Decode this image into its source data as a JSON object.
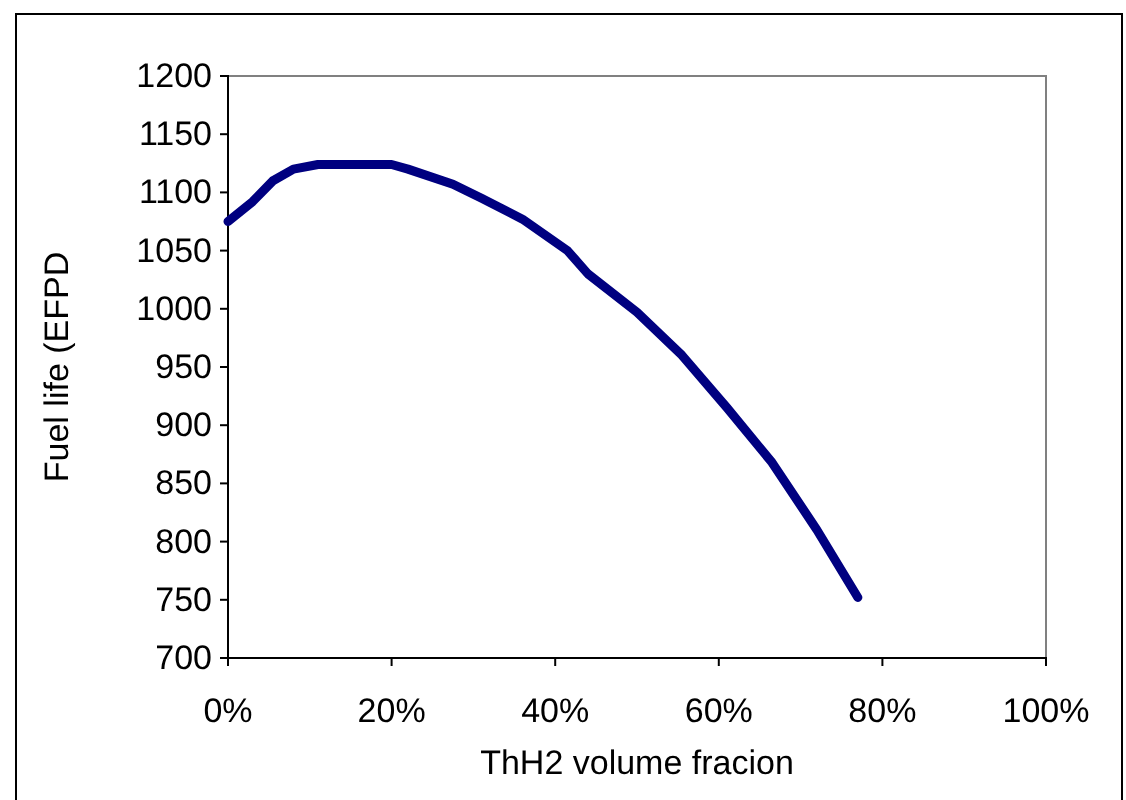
{
  "chart_data": {
    "type": "line",
    "xlabel": "ThH2 volume fracion",
    "ylabel": "Fuel life (EFPD",
    "x": [
      0,
      3,
      5.5,
      8,
      11,
      15,
      20,
      22,
      27.5,
      31,
      36,
      41.5,
      44,
      50,
      55.5,
      61,
      66.5,
      72,
      77
    ],
    "series": [
      {
        "color": "#000080",
        "values": [
          1075,
          1092,
          1110,
          1120,
          1124,
          1124,
          1124,
          1120,
          1107,
          1095,
          1077,
          1050,
          1030,
          997,
          960,
          915,
          868,
          810,
          752
        ]
      }
    ],
    "xlim": [
      0,
      100
    ],
    "xticks": [
      {
        "value": 0,
        "label": "0%"
      },
      {
        "value": 20,
        "label": "20%"
      },
      {
        "value": 40,
        "label": "40%"
      },
      {
        "value": 60,
        "label": "60%"
      },
      {
        "value": 80,
        "label": "80%"
      },
      {
        "value": 100,
        "label": "100%"
      }
    ],
    "ylim": [
      700,
      1200
    ],
    "yticks": [
      700,
      750,
      800,
      850,
      900,
      950,
      1000,
      1050,
      1100,
      1150,
      1200
    ],
    "marker": "none",
    "line_style": "solid"
  }
}
